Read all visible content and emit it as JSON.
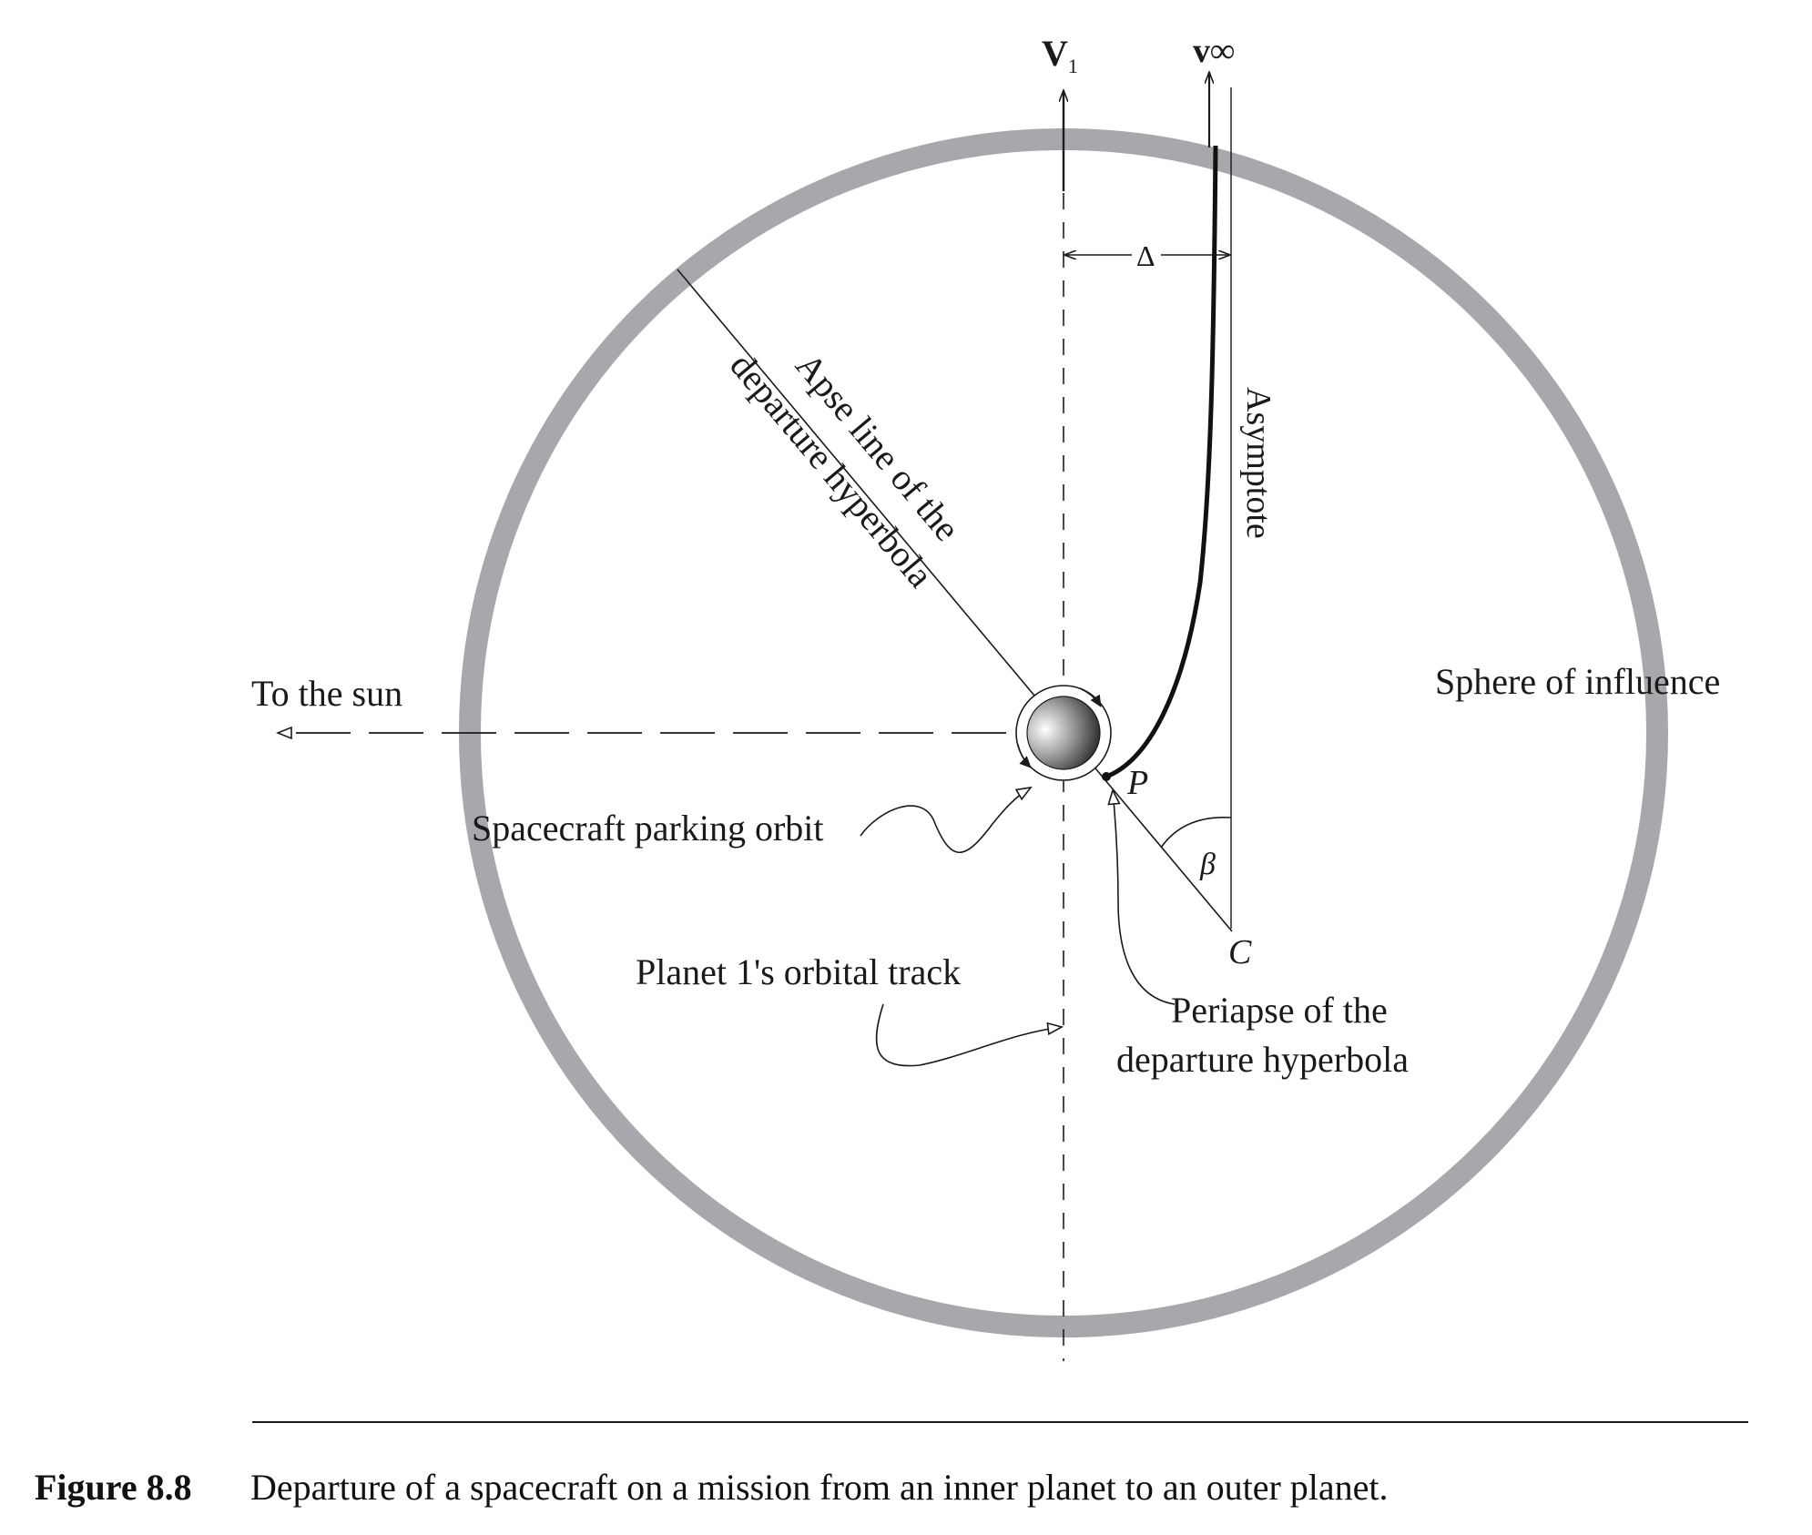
{
  "labels": {
    "v1_main": "V",
    "v1_sub": "1",
    "vinf": "v∞",
    "delta": "Δ",
    "apse_line_1": "Apse line of the",
    "apse_line_2": "departure hyperbola",
    "asymptote": "Asymptote",
    "to_the_sun": "To the sun",
    "sphere_of_influence": "Sphere of influence",
    "p": "P",
    "beta": "β",
    "c": "C",
    "parking_orbit": "Spacecraft parking orbit",
    "orbital_track": "Planet 1's orbital track",
    "periapse_1": "Periapse of the",
    "periapse_2": "departure hyperbola"
  },
  "caption": {
    "number": "Figure 8.8",
    "text": "Departure of a spacecraft on a mission from an inner planet to an outer planet."
  },
  "colors": {
    "sphere_ring": "#a7a8ab",
    "ink": "#1a1a1a"
  }
}
